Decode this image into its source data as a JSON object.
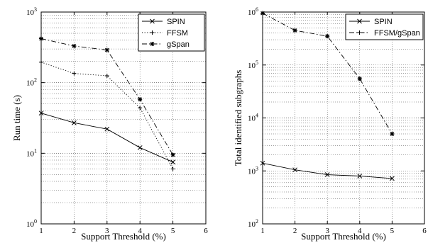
{
  "chart_data": [
    {
      "type": "line",
      "title": "",
      "xlabel": "Support Threshold (%)",
      "ylabel": "Run time (s)",
      "xlim": [
        1,
        6
      ],
      "ylim": [
        1,
        1000
      ],
      "yscale": "log",
      "grid": true,
      "legend_position": "top-right",
      "x_ticks": [
        "1",
        "2",
        "3",
        "4",
        "5",
        "6"
      ],
      "y_ticks": [
        {
          "base": "10",
          "exp": "0"
        },
        {
          "base": "10",
          "exp": "1"
        },
        {
          "base": "10",
          "exp": "2"
        },
        {
          "base": "10",
          "exp": "3"
        }
      ],
      "series": [
        {
          "name": "SPIN",
          "marker": "x",
          "line": "solid",
          "x": [
            1,
            2,
            3,
            4,
            5
          ],
          "values": [
            37,
            27,
            22,
            12,
            7.5
          ]
        },
        {
          "name": "FFSM",
          "marker": "+",
          "line": "dotted",
          "x": [
            1,
            2,
            3,
            4,
            5
          ],
          "values": [
            195,
            135,
            125,
            44,
            6
          ]
        },
        {
          "name": "gSpan",
          "marker": "*",
          "line": "dashdot",
          "x": [
            1,
            2,
            3,
            4,
            5
          ],
          "values": [
            420,
            330,
            290,
            58,
            9.5
          ]
        }
      ]
    },
    {
      "type": "line",
      "title": "",
      "xlabel": "Support Threshold (%)",
      "ylabel": "Total identified subgraphs",
      "xlim": [
        1,
        6
      ],
      "ylim": [
        100,
        1000000
      ],
      "yscale": "log",
      "grid": true,
      "legend_position": "top-right",
      "x_ticks": [
        "1",
        "2",
        "3",
        "4",
        "5",
        "6"
      ],
      "y_ticks": [
        {
          "base": "10",
          "exp": "2"
        },
        {
          "base": "10",
          "exp": "3"
        },
        {
          "base": "10",
          "exp": "4"
        },
        {
          "base": "10",
          "exp": "5"
        },
        {
          "base": "10",
          "exp": "6"
        }
      ],
      "series": [
        {
          "name": "SPIN",
          "marker": "x",
          "line": "solid",
          "x": [
            1,
            2,
            3,
            4,
            5
          ],
          "values": [
            1400,
            1050,
            850,
            800,
            720
          ]
        },
        {
          "name": "FFSM/gSpan",
          "marker": "+",
          "line": "dashdot",
          "x": [
            1,
            2,
            3,
            4,
            5
          ],
          "values": [
            950000,
            450000,
            350000,
            55000,
            5000
          ]
        }
      ],
      "extra_markers": [
        {
          "marker": "*",
          "x": [
            1,
            2,
            3,
            4,
            5
          ],
          "values": [
            950000,
            450000,
            350000,
            55000,
            5000
          ]
        }
      ]
    }
  ]
}
